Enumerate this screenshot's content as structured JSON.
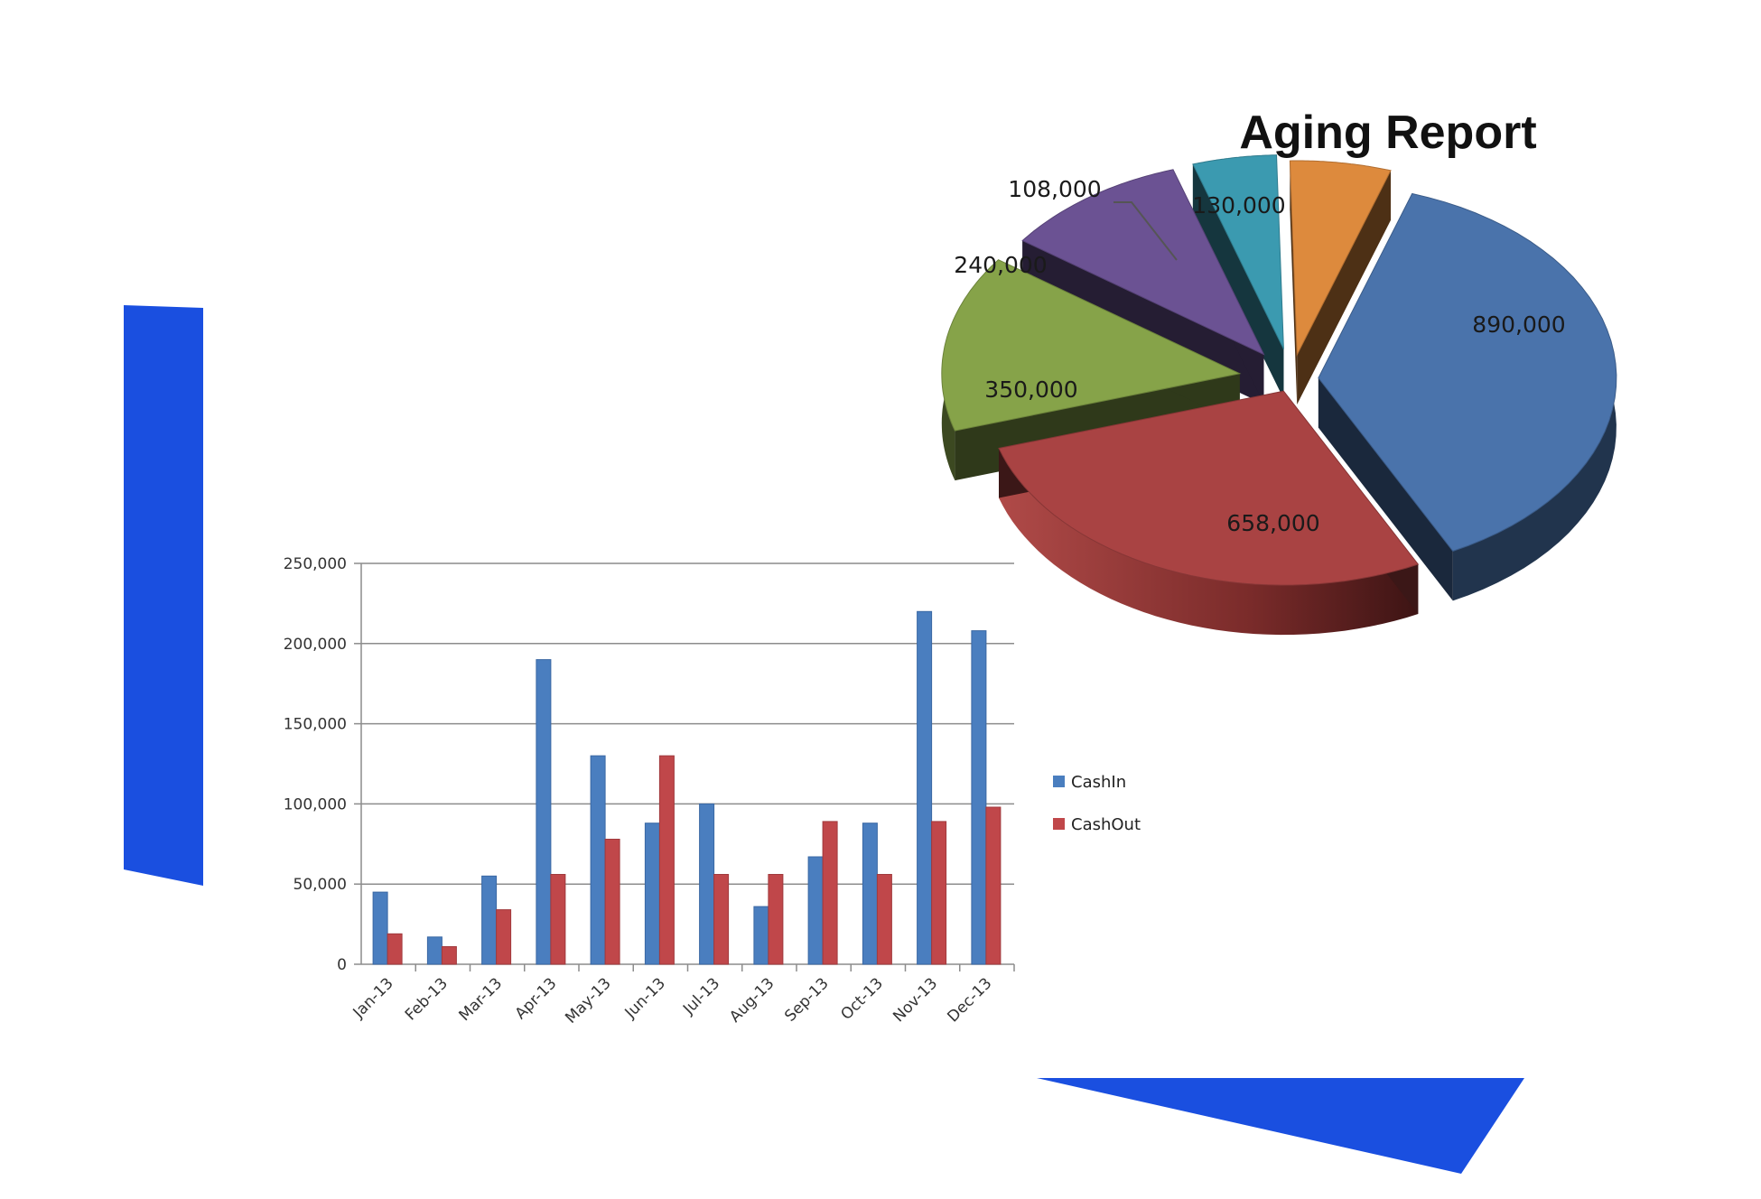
{
  "colors": {
    "accent": "#1a4fe0",
    "cash_in": "#4a7ebf",
    "cash_out": "#c0474a"
  },
  "chart_data": [
    {
      "type": "pie",
      "title": "Aging Report",
      "values": [
        890000,
        658000,
        350000,
        240000,
        108000,
        130000
      ],
      "labels": [
        "890,000",
        "658,000",
        "350,000",
        "240,000",
        "108,000",
        "130,000"
      ],
      "colors": [
        "#4a73ab",
        "#a94343",
        "#86a349",
        "#6b5293",
        "#3b9ab0",
        "#dd8a3d"
      ],
      "style": "3d-exploded"
    },
    {
      "type": "bar",
      "categories": [
        "Jan-13",
        "Feb-13",
        "Mar-13",
        "Apr-13",
        "May-13",
        "Jun-13",
        "Jul-13",
        "Aug-13",
        "Sep-13",
        "Oct-13",
        "Nov-13",
        "Dec-13"
      ],
      "series": [
        {
          "name": "CashIn",
          "values": [
            45000,
            17000,
            55000,
            190000,
            130000,
            88000,
            100000,
            36000,
            67000,
            88000,
            220000,
            208000
          ]
        },
        {
          "name": "CashOut",
          "values": [
            19000,
            11000,
            34000,
            56000,
            78000,
            130000,
            56000,
            56000,
            89000,
            56000,
            89000,
            98000
          ]
        }
      ],
      "ylim": [
        0,
        250000
      ],
      "yticks": [
        "0",
        "50,000",
        "100,000",
        "150,000",
        "200,000",
        "250,000"
      ],
      "grid": true,
      "legend": "right"
    }
  ]
}
